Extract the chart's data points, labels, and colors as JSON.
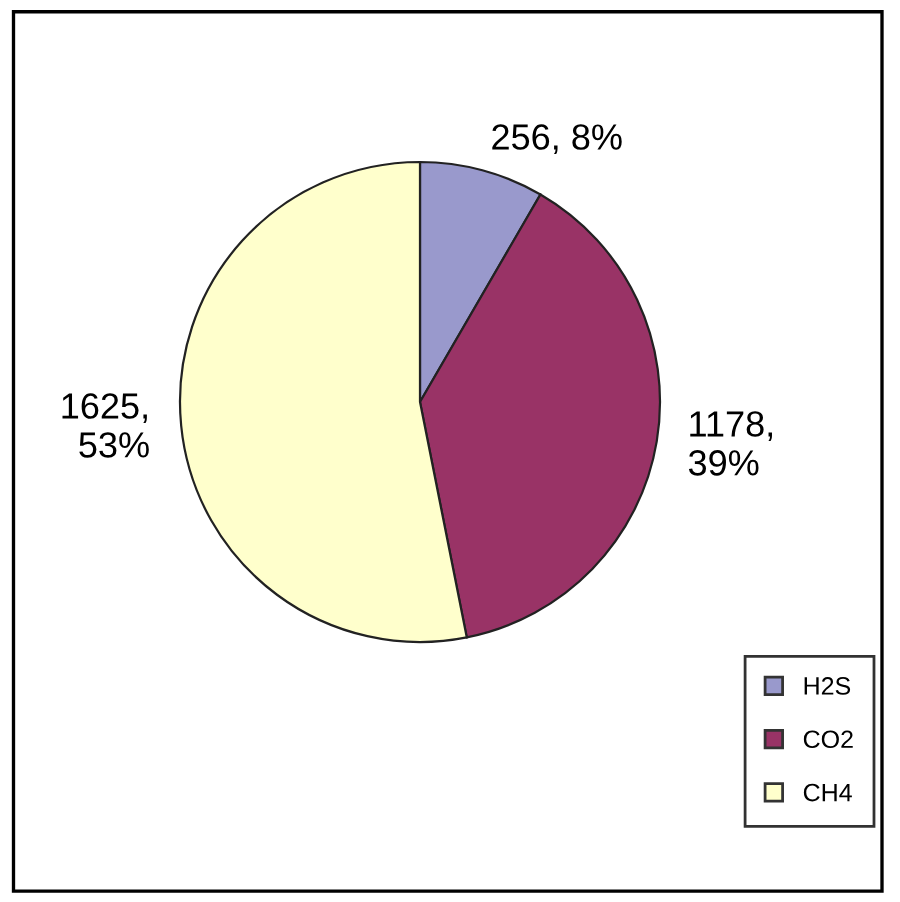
{
  "chart_data": {
    "type": "pie",
    "categories": [
      "H2S",
      "CO2",
      "CH4"
    ],
    "values": [
      256,
      1178,
      1625
    ],
    "colors": [
      "#9999cc",
      "#993366",
      "#ffffcc"
    ],
    "value_labels": [
      "256, 8%",
      "1178,\n39%",
      "1625,\n53%"
    ],
    "legend": "bottom right"
  }
}
